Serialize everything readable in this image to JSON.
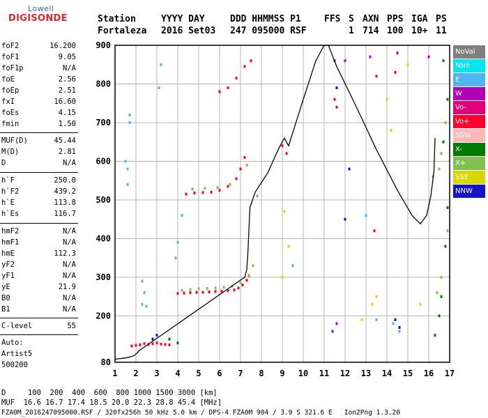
{
  "logo": {
    "line1": "Lowell",
    "line2": "DIGISONDE"
  },
  "header": {
    "labels": [
      "Station",
      "YYYY DAY",
      "DDD HHMMSS P1",
      "FFS",
      "S",
      "AXN",
      "PPS",
      "IGA",
      "PS"
    ],
    "values": [
      "Fortaleza",
      "2016 Set03",
      "247 095000 RSF",
      "1",
      "714",
      "100",
      "10+",
      "11"
    ]
  },
  "params": [
    {
      "k": "foF2",
      "v": "16.200"
    },
    {
      "k": "foF1",
      "v": "9.05"
    },
    {
      "k": "foF1p",
      "v": "N/A"
    },
    {
      "k": "foE",
      "v": "2.56"
    },
    {
      "k": "foEp",
      "v": "2.51"
    },
    {
      "k": "fxI",
      "v": "16.60"
    },
    {
      "k": "foEs",
      "v": "4.15"
    },
    {
      "k": "fmin",
      "v": "1.50"
    },
    {
      "k": "MUF(D)",
      "v": "45.44"
    },
    {
      "k": "M(D)",
      "v": "2.81"
    },
    {
      "k": "D",
      "v": "N/A"
    },
    {
      "k": "h`F",
      "v": "250.0"
    },
    {
      "k": "h`F2",
      "v": "439.2"
    },
    {
      "k": "h`E",
      "v": "113.8"
    },
    {
      "k": "h`Es",
      "v": "116.7"
    },
    {
      "k": "hmF2",
      "v": "N/A"
    },
    {
      "k": "hmF1",
      "v": "N/A"
    },
    {
      "k": "hmE",
      "v": "112.3"
    },
    {
      "k": "yF2",
      "v": "N/A"
    },
    {
      "k": "yF1",
      "v": "N/A"
    },
    {
      "k": "yE",
      "v": "21.9"
    },
    {
      "k": "B0",
      "v": "N/A"
    },
    {
      "k": "B1",
      "v": "N/A"
    },
    {
      "k": "C-level",
      "v": "55"
    }
  ],
  "auto": {
    "line1": "Auto:",
    "line2": "Artist5",
    "line3": "500200"
  },
  "footer": {
    "d_row": "D     100  200  400  600  800 1000 1500 3000 [km]",
    "muf_row": "MUF  16.6 16.7 17.4 18.5 20.0 22.3 28.8 45.4 [MHz]",
    "file_row": "FZA0M_2016247095000.RSF / 320fx256h 50 kHz 5.0 km / DPS-4 FZA0M 904 / 3.9 S 321.6 E   Ion2Png 1.3.20"
  },
  "legend": [
    {
      "label": "NoVal",
      "color": "#7f7f7f"
    },
    {
      "label": "NNE",
      "color": "#00e5f0"
    },
    {
      "label": "E",
      "color": "#4fb4f0"
    },
    {
      "label": "W",
      "color": "#b000b8"
    },
    {
      "label": "Vo-",
      "color": "#e0007a"
    },
    {
      "label": "Vo+",
      "color": "#ff0033"
    },
    {
      "label": "SSW",
      "color": "#ffb8b8"
    },
    {
      "label": "X-",
      "color": "#007a00"
    },
    {
      "label": "X+",
      "color": "#7fc050"
    },
    {
      "label": "SSE",
      "color": "#d8d800"
    },
    {
      "label": "NNW",
      "color": "#1414c8"
    }
  ],
  "chart_data": {
    "type": "scatter",
    "xlabel": "",
    "ylabel": "",
    "xlim": [
      1,
      17
    ],
    "ylim": [
      80,
      900
    ],
    "x_ticks": [
      1,
      2,
      3,
      4,
      5,
      6,
      7,
      8,
      9,
      10,
      11,
      12,
      13,
      14,
      15,
      16,
      17
    ],
    "y_ticks": [
      80,
      200,
      300,
      400,
      500,
      600,
      700,
      800,
      900
    ],
    "grid": true,
    "series": [
      {
        "name": "Vo+",
        "color": "#ff0033",
        "points": [
          [
            1.8,
            122
          ],
          [
            2.0,
            124
          ],
          [
            2.2,
            125
          ],
          [
            2.4,
            128
          ],
          [
            2.6,
            126
          ],
          [
            2.8,
            128
          ],
          [
            3.0,
            130
          ],
          [
            3.2,
            127
          ],
          [
            3.4,
            126
          ],
          [
            3.6,
            125
          ],
          [
            4.0,
            258
          ],
          [
            4.3,
            259
          ],
          [
            4.6,
            260
          ],
          [
            4.9,
            261
          ],
          [
            5.2,
            261
          ],
          [
            5.5,
            262
          ],
          [
            5.8,
            263
          ],
          [
            6.1,
            264
          ],
          [
            6.4,
            265
          ],
          [
            6.7,
            267
          ],
          [
            6.9,
            272
          ],
          [
            7.1,
            280
          ],
          [
            7.3,
            292
          ],
          [
            7.4,
            304
          ],
          [
            4.4,
            515
          ],
          [
            4.8,
            518
          ],
          [
            5.2,
            519
          ],
          [
            5.6,
            520
          ],
          [
            6.0,
            525
          ],
          [
            6.4,
            535
          ],
          [
            6.8,
            555
          ],
          [
            7.0,
            580
          ],
          [
            7.2,
            610
          ],
          [
            6.0,
            780
          ],
          [
            6.4,
            790
          ],
          [
            6.8,
            815
          ],
          [
            7.2,
            845
          ],
          [
            7.5,
            860
          ],
          [
            9.0,
            640
          ],
          [
            9.2,
            620
          ],
          [
            11.5,
            760
          ],
          [
            11.6,
            740
          ],
          [
            13.5,
            820
          ],
          [
            14.4,
            830
          ]
        ]
      },
      {
        "name": "X+",
        "color": "#7fc050",
        "points": [
          [
            4.2,
            266
          ],
          [
            4.6,
            268
          ],
          [
            5.0,
            270
          ],
          [
            5.4,
            271
          ],
          [
            5.8,
            272
          ],
          [
            6.2,
            274
          ],
          [
            6.6,
            277
          ],
          [
            7.0,
            286
          ],
          [
            7.4,
            305
          ],
          [
            7.6,
            330
          ],
          [
            4.7,
            528
          ],
          [
            5.3,
            530
          ],
          [
            5.9,
            532
          ],
          [
            6.5,
            540
          ],
          [
            7.3,
            590
          ],
          [
            7.8,
            510
          ],
          [
            16.2,
            560
          ],
          [
            16.5,
            580
          ],
          [
            16.6,
            620
          ],
          [
            16.8,
            700
          ],
          [
            16.4,
            260
          ],
          [
            16.6,
            300
          ],
          [
            16.9,
            420
          ]
        ]
      },
      {
        "name": "X-",
        "color": "#007a00",
        "points": [
          [
            16.3,
            150
          ],
          [
            16.5,
            200
          ],
          [
            16.6,
            250
          ],
          [
            16.8,
            380
          ],
          [
            16.9,
            480
          ],
          [
            16.7,
            650
          ],
          [
            16.9,
            760
          ],
          [
            16.7,
            860
          ],
          [
            3.6,
            140
          ],
          [
            4.0,
            130
          ]
        ]
      },
      {
        "name": "E",
        "color": "#4fb4f0",
        "points": [
          [
            2.3,
            290
          ],
          [
            2.4,
            260
          ],
          [
            2.3,
            230
          ],
          [
            2.5,
            225
          ],
          [
            1.5,
            600
          ],
          [
            1.6,
            580
          ],
          [
            1.6,
            540
          ],
          [
            1.7,
            720
          ],
          [
            1.7,
            700
          ],
          [
            4.2,
            460
          ],
          [
            4.0,
            390
          ],
          [
            3.9,
            350
          ],
          [
            9.5,
            330
          ],
          [
            13.0,
            460
          ],
          [
            13.5,
            190
          ],
          [
            14.3,
            180
          ],
          [
            14.6,
            160
          ],
          [
            3.2,
            850
          ],
          [
            3.1,
            790
          ]
        ]
      },
      {
        "name": "SSE",
        "color": "#d8d800",
        "points": [
          [
            9.1,
            470
          ],
          [
            9.3,
            380
          ],
          [
            13.3,
            230
          ],
          [
            13.5,
            250
          ],
          [
            14.0,
            760
          ],
          [
            14.2,
            680
          ],
          [
            15.6,
            230
          ],
          [
            15.0,
            850
          ],
          [
            12.8,
            190
          ],
          [
            9.0,
            300
          ]
        ]
      },
      {
        "name": "W",
        "color": "#b000b8",
        "points": [
          [
            11.4,
            160
          ],
          [
            11.6,
            180
          ],
          [
            11.5,
            860
          ],
          [
            12.0,
            860
          ],
          [
            13.4,
            420
          ],
          [
            14.5,
            880
          ],
          [
            13.2,
            870
          ],
          [
            16.0,
            870
          ]
        ]
      },
      {
        "name": "NNW",
        "color": "#1414c8",
        "points": [
          [
            3.0,
            150
          ],
          [
            2.8,
            140
          ],
          [
            14.6,
            170
          ],
          [
            14.4,
            190
          ],
          [
            11.6,
            790
          ],
          [
            12.2,
            580
          ],
          [
            12.0,
            450
          ]
        ]
      },
      {
        "name": "trace",
        "color": "#000000",
        "points": [
          [
            1.0,
            88
          ],
          [
            1.6,
            92
          ],
          [
            1.9,
            97
          ],
          [
            2.05,
            104
          ],
          [
            2.15,
            110
          ],
          [
            7.2,
            300
          ],
          [
            7.3,
            320
          ],
          [
            7.35,
            360
          ],
          [
            7.45,
            480
          ],
          [
            7.7,
            520
          ],
          [
            8.3,
            570
          ],
          [
            8.8,
            630
          ],
          [
            9.0,
            650
          ],
          [
            9.1,
            660
          ],
          [
            9.3,
            640
          ],
          [
            10.0,
            760
          ],
          [
            10.6,
            860
          ],
          [
            11.0,
            900
          ],
          [
            11.2,
            900
          ],
          [
            11.6,
            845
          ],
          [
            12.5,
            745
          ],
          [
            13.5,
            630
          ],
          [
            14.5,
            525
          ],
          [
            15.2,
            460
          ],
          [
            15.6,
            438
          ],
          [
            15.9,
            460
          ],
          [
            16.1,
            510
          ],
          [
            16.25,
            575
          ],
          [
            16.3,
            660
          ]
        ]
      }
    ]
  }
}
